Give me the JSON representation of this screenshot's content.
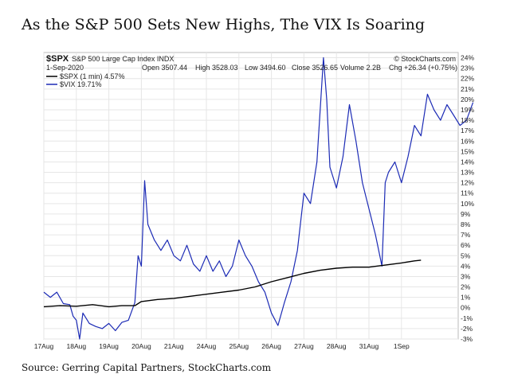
{
  "page": {
    "title": "As the S&P 500 Sets New Highs, The VIX Is Soaring",
    "source": "Source: Gerring Capital Partners, StockCharts.com"
  },
  "header": {
    "symbol": "$SPX",
    "name": "S&P 500 Large Cap Index INDX",
    "date": "1-Sep-2020",
    "open": "Open 3507.44",
    "high": "High 3528.03",
    "low": "Low 3494.60",
    "close": "Close 3526.65",
    "volume": "Volume 2.2B",
    "change": "Chg +26.34 (+0.75%)",
    "brand": "© StockCharts.com"
  },
  "chart_data": {
    "type": "line",
    "x": [
      "17Aug",
      "18Aug",
      "19Aug",
      "20Aug",
      "21Aug",
      "24Aug",
      "25Aug",
      "26Aug",
      "27Aug",
      "28Aug",
      "31Aug",
      "1Sep"
    ],
    "ylim": [
      -3,
      24.5
    ],
    "ytick_labels": [
      "-3%",
      "-2%",
      "-1%",
      "0%",
      "1%",
      "2%",
      "3%",
      "4%",
      "5%",
      "6%",
      "7%",
      "8%",
      "9%",
      "10%",
      "11%",
      "12%",
      "13%",
      "14%",
      "15%",
      "16%",
      "17%",
      "18%",
      "19%",
      "20%",
      "21%",
      "22%",
      "23%",
      "24%"
    ],
    "grid": true,
    "legend_position": "top-left",
    "colors": {
      "spx": "#000000",
      "vix": "#1c2bb5"
    },
    "series": [
      {
        "name": "$SPX (1 min) 4.57%",
        "points": [
          [
            0,
            0.1
          ],
          [
            0.5,
            0.2
          ],
          [
            1,
            0.15
          ],
          [
            1.5,
            0.3
          ],
          [
            2,
            0.1
          ],
          [
            2.4,
            0.2
          ],
          [
            2.8,
            0.2
          ],
          [
            3,
            0.6
          ],
          [
            3.5,
            0.8
          ],
          [
            4,
            0.9
          ],
          [
            4.5,
            1.1
          ],
          [
            5,
            1.3
          ],
          [
            5.5,
            1.5
          ],
          [
            6,
            1.7
          ],
          [
            6.5,
            2.0
          ],
          [
            7,
            2.5
          ],
          [
            7.5,
            2.9
          ],
          [
            8,
            3.3
          ],
          [
            8.5,
            3.6
          ],
          [
            9,
            3.8
          ],
          [
            9.5,
            3.9
          ],
          [
            10,
            3.9
          ],
          [
            10.5,
            4.1
          ],
          [
            11,
            4.3
          ],
          [
            11.4,
            4.5
          ],
          [
            11.6,
            4.57
          ]
        ]
      },
      {
        "name": "$VIX 19.71%",
        "points": [
          [
            0,
            1.5
          ],
          [
            0.2,
            1.0
          ],
          [
            0.4,
            1.5
          ],
          [
            0.6,
            0.4
          ],
          [
            0.8,
            0.3
          ],
          [
            0.9,
            -0.8
          ],
          [
            1.0,
            -1.2
          ],
          [
            1.1,
            -3.0
          ],
          [
            1.2,
            -0.5
          ],
          [
            1.4,
            -1.5
          ],
          [
            1.6,
            -1.8
          ],
          [
            1.8,
            -2.0
          ],
          [
            2.0,
            -1.5
          ],
          [
            2.2,
            -2.2
          ],
          [
            2.4,
            -1.4
          ],
          [
            2.6,
            -1.2
          ],
          [
            2.8,
            0.5
          ],
          [
            2.9,
            5.0
          ],
          [
            3.0,
            4.0
          ],
          [
            3.1,
            12.2
          ],
          [
            3.2,
            8.0
          ],
          [
            3.4,
            6.5
          ],
          [
            3.6,
            5.5
          ],
          [
            3.8,
            6.5
          ],
          [
            4.0,
            5.0
          ],
          [
            4.2,
            4.5
          ],
          [
            4.4,
            6.0
          ],
          [
            4.6,
            4.2
          ],
          [
            4.8,
            3.5
          ],
          [
            5.0,
            5.0
          ],
          [
            5.2,
            3.5
          ],
          [
            5.4,
            4.5
          ],
          [
            5.6,
            3.0
          ],
          [
            5.8,
            4.0
          ],
          [
            6.0,
            6.5
          ],
          [
            6.2,
            5.0
          ],
          [
            6.4,
            4.0
          ],
          [
            6.6,
            2.5
          ],
          [
            6.8,
            1.5
          ],
          [
            7.0,
            -0.5
          ],
          [
            7.2,
            -1.7
          ],
          [
            7.4,
            0.5
          ],
          [
            7.6,
            2.5
          ],
          [
            7.8,
            5.5
          ],
          [
            8.0,
            11.0
          ],
          [
            8.2,
            10.0
          ],
          [
            8.4,
            14.0
          ],
          [
            8.6,
            24.0
          ],
          [
            8.7,
            20.0
          ],
          [
            8.8,
            13.5
          ],
          [
            9.0,
            11.5
          ],
          [
            9.2,
            14.5
          ],
          [
            9.4,
            19.5
          ],
          [
            9.6,
            16.0
          ],
          [
            9.8,
            12.0
          ],
          [
            10.0,
            9.5
          ],
          [
            10.2,
            7.0
          ],
          [
            10.4,
            4.0
          ],
          [
            10.5,
            12.0
          ],
          [
            10.6,
            13.0
          ],
          [
            10.8,
            14.0
          ],
          [
            11.0,
            12.0
          ],
          [
            11.2,
            14.5
          ],
          [
            11.4,
            17.5
          ],
          [
            11.6,
            16.5
          ],
          [
            11.8,
            20.5
          ],
          [
            12.0,
            19.0
          ],
          [
            12.2,
            18.0
          ],
          [
            12.4,
            19.5
          ],
          [
            12.6,
            18.5
          ],
          [
            12.8,
            17.5
          ],
          [
            13.0,
            18.0
          ],
          [
            13.2,
            19.71
          ]
        ]
      }
    ]
  }
}
